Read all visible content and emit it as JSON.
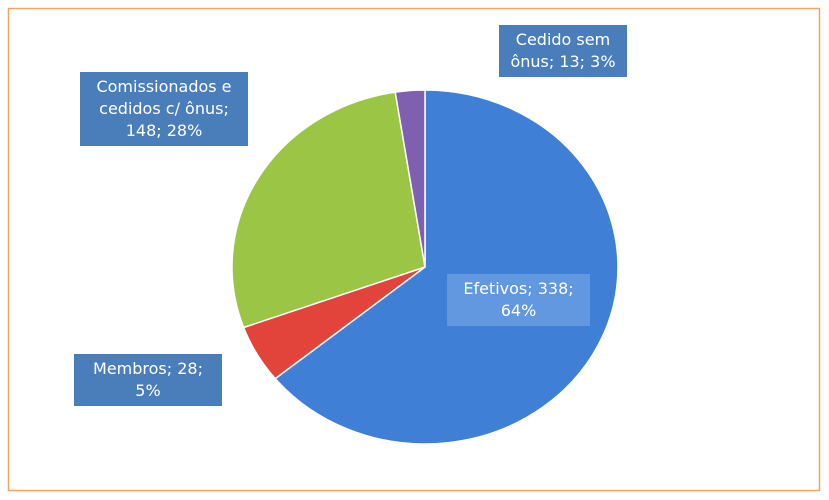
{
  "chart_data": {
    "type": "pie",
    "values": [
      338,
      28,
      148,
      13
    ],
    "value_labels": [
      "Efetivos; 338; 64%",
      "Membros; 28; 5%",
      "Comissionados e cedidos c/ ônus; 148; 28%",
      "Cedido sem ônus; 13; 3%"
    ],
    "colors": [
      "#3f7fd6",
      "#e2433a",
      "#9bc544",
      "#7f5fb0"
    ]
  }
}
